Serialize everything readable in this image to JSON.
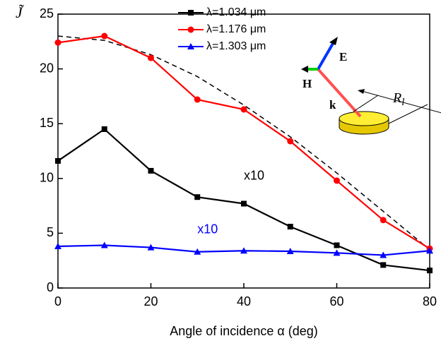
{
  "chart_data": {
    "type": "line",
    "xlabel": "Angle of incidence α (deg)",
    "ylabel": "J̃",
    "x": [
      0,
      10,
      20,
      30,
      40,
      50,
      60,
      70,
      80
    ],
    "series": [
      {
        "name": "λ=1.034 μm",
        "color": "#000000",
        "marker": "square",
        "values": [
          11.6,
          14.5,
          10.7,
          8.3,
          7.7,
          5.6,
          3.9,
          2.1,
          1.6
        ]
      },
      {
        "name": "λ=1.176 μm",
        "color": "#ff0000",
        "marker": "circle",
        "values": [
          22.4,
          23.0,
          21.0,
          17.2,
          16.3,
          13.4,
          9.8,
          6.2,
          3.6
        ]
      },
      {
        "name": "λ=1.303 μm",
        "color": "#0000ff",
        "marker": "triangle",
        "values": [
          3.8,
          3.9,
          3.7,
          3.3,
          3.4,
          3.35,
          3.2,
          3.0,
          3.4
        ]
      }
    ],
    "dashed_curve": {
      "color": "#000000",
      "values": [
        23.0,
        22.6,
        21.3,
        19.3,
        16.7,
        13.8,
        10.5,
        7.0,
        3.5
      ]
    },
    "xlim": [
      0,
      80
    ],
    "xticks": [
      0,
      20,
      40,
      60,
      80
    ],
    "ylim": [
      0,
      25
    ],
    "yticks": [
      0,
      5,
      10,
      15,
      20,
      25
    ],
    "grid": false,
    "legend": "top",
    "annotations": [
      {
        "text": "x10",
        "color": "#000000",
        "x": 40,
        "y": 10.2
      },
      {
        "text": "x10",
        "color": "#0000ff",
        "x": 30,
        "y": 5.3
      }
    ],
    "inset_labels": [
      "E",
      "H",
      "k",
      "R"
    ],
    "inset_subscript": "l"
  }
}
